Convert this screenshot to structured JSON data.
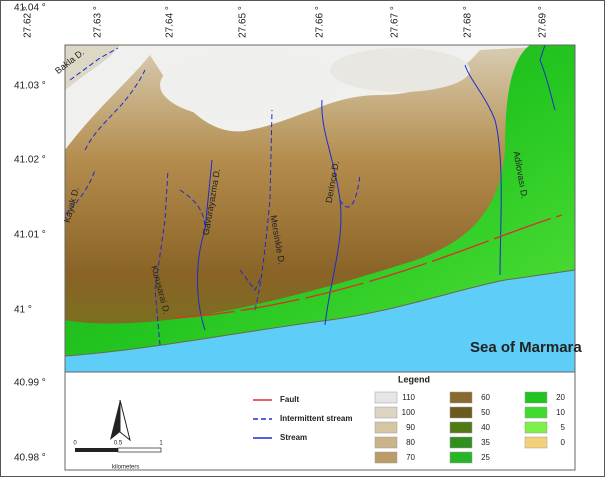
{
  "axes": {
    "top_labels": [
      "27.62 °",
      "27.63 °",
      "27.64 °",
      "27.65 °",
      "27.66 °",
      "27.67 °",
      "27.68 °",
      "27.69 °"
    ],
    "left_labels": [
      "41.04 °",
      "41.03 °",
      "41.02 °",
      "41.01 °",
      "41 °",
      "40.99 °",
      "40.98 °"
    ]
  },
  "map": {
    "stream_names": [
      "Bakla D.",
      "Kayak D.",
      "Kurusarai D.",
      "Gavurayazma D.",
      "Mersinkle D.",
      "Derince D.",
      "Adilovası D."
    ],
    "sea_label": "Sea of Marmara"
  },
  "legend": {
    "title": "Legend",
    "lines": [
      "Fault",
      "Intermittent stream",
      "Stream"
    ],
    "classes": [
      "110",
      "100",
      "90",
      "80",
      "70",
      "60",
      "50",
      "40",
      "35",
      "25",
      "20",
      "10",
      "5",
      "0"
    ]
  },
  "scale_bar": {
    "ticks": [
      "0",
      "0.5",
      "1"
    ],
    "unit": "kilometers"
  }
}
